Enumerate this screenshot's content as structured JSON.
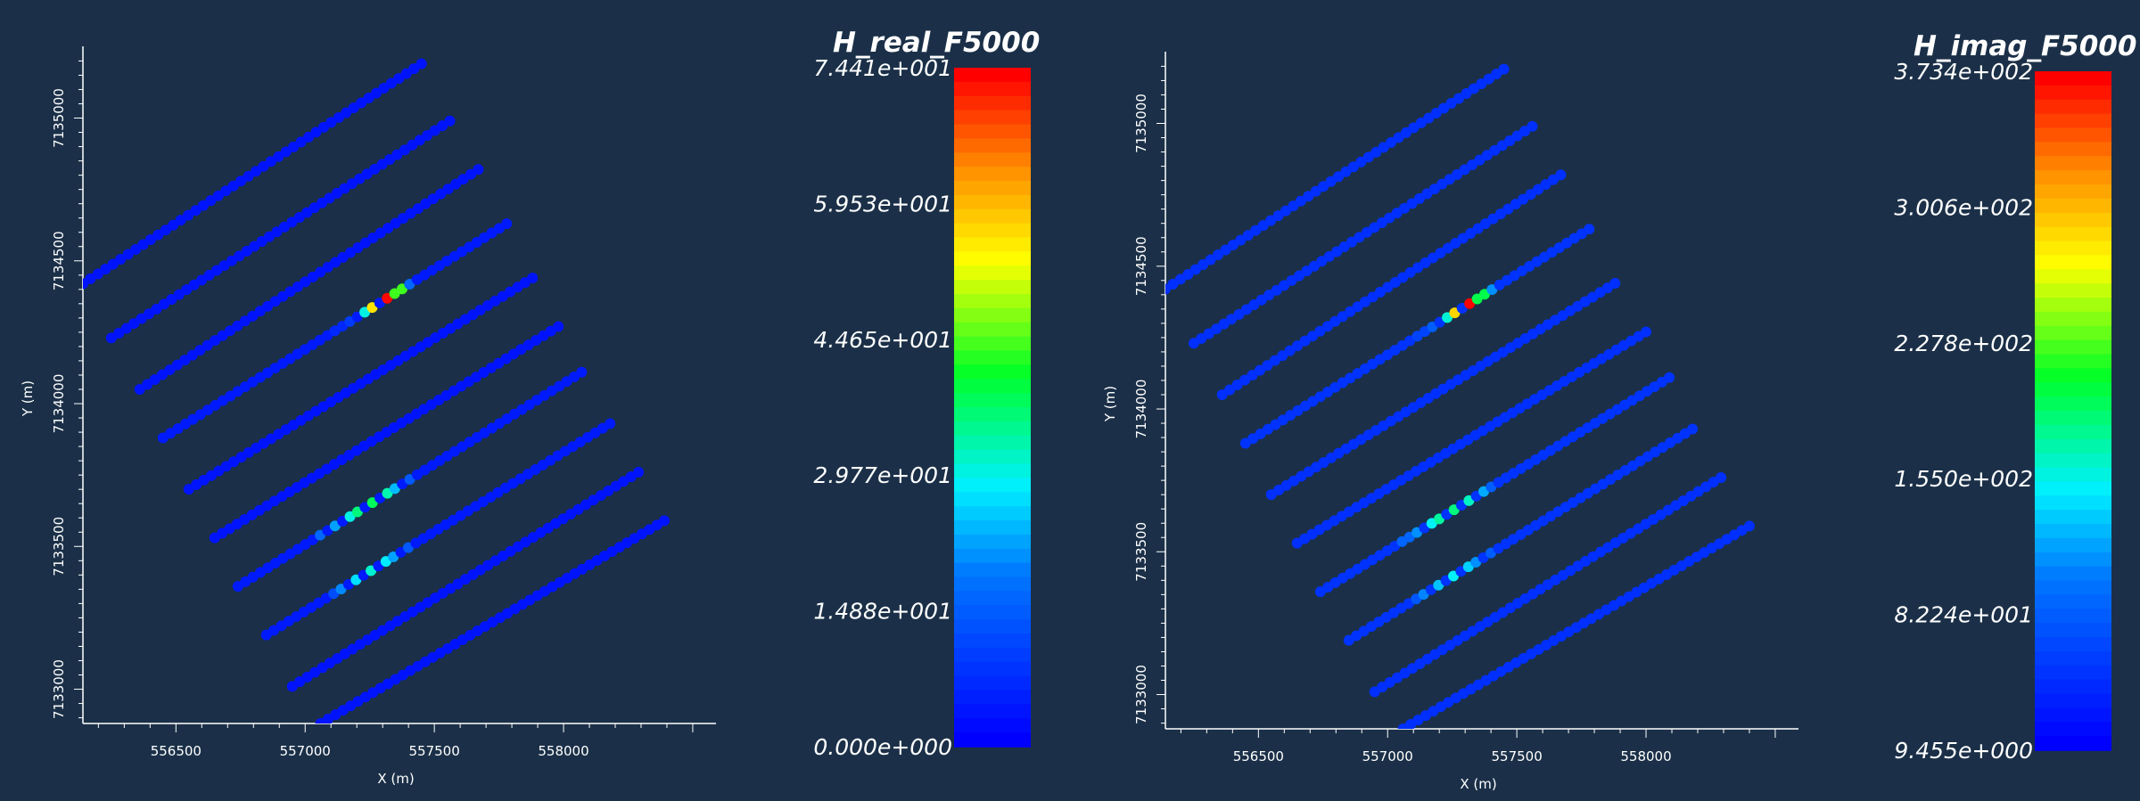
{
  "chart_data": [
    {
      "type": "scatter",
      "xlabel": "X (m)",
      "ylabel": "Y (m)",
      "xlim": [
        556140,
        558590
      ],
      "ylim": [
        7132880,
        7135220
      ],
      "xticks": [
        "556500",
        "557000",
        "557500",
        "558000"
      ],
      "yticks": [
        "7133000",
        "7133500",
        "7134000",
        "7134500",
        "7135000"
      ],
      "scalar_name": "H_real_F5000",
      "range": [
        0.0,
        74.41
      ],
      "colorbar_labels": [
        "7.441e+001",
        "5.953e+001",
        "4.465e+001",
        "2.977e+001",
        "1.488e+001",
        "0.000e+000"
      ],
      "lines": [
        {
          "x0": 556140,
          "y0": 7134420,
          "x1": 557450,
          "y1": 7135190,
          "base": 3,
          "anomalies": []
        },
        {
          "x0": 556250,
          "y0": 7134230,
          "x1": 557560,
          "y1": 7134990,
          "base": 3,
          "anomalies": []
        },
        {
          "x0": 556360,
          "y0": 7134050,
          "x1": 557670,
          "y1": 7134820,
          "base": 3,
          "anomalies": []
        },
        {
          "x0": 556450,
          "y0": 7133880,
          "x1": 557780,
          "y1": 7134630,
          "base": 4,
          "anomalies": [
            [
              557180,
              9
            ],
            [
              557230,
              30
            ],
            [
              557270,
              56
            ],
            [
              557310,
              74
            ],
            [
              557360,
              44
            ],
            [
              557410,
              16
            ],
            [
              557130,
              6
            ]
          ]
        },
        {
          "x0": 556550,
          "y0": 7133700,
          "x1": 557880,
          "y1": 7134440,
          "base": 3,
          "anomalies": []
        },
        {
          "x0": 556650,
          "y0": 7133530,
          "x1": 557980,
          "y1": 7134270,
          "base": 3,
          "anomalies": []
        },
        {
          "x0": 556740,
          "y0": 7133360,
          "x1": 558070,
          "y1": 7134110,
          "base": 4,
          "anomalies": [
            [
              557070,
              16
            ],
            [
              557120,
              22
            ],
            [
              557170,
              30
            ],
            [
              557210,
              36
            ],
            [
              557260,
              38
            ],
            [
              557310,
              33
            ],
            [
              557360,
              24
            ],
            [
              557410,
              14
            ]
          ]
        },
        {
          "x0": 556850,
          "y0": 7133190,
          "x1": 558180,
          "y1": 7133930,
          "base": 4,
          "anomalies": [
            [
              557100,
              12
            ],
            [
              557150,
              20
            ],
            [
              557200,
              27
            ],
            [
              557250,
              31
            ],
            [
              557300,
              28
            ],
            [
              557350,
              22
            ],
            [
              557400,
              14
            ]
          ]
        },
        {
          "x0": 556950,
          "y0": 7133010,
          "x1": 558290,
          "y1": 7133760,
          "base": 3,
          "anomalies": []
        },
        {
          "x0": 557060,
          "y0": 7132880,
          "x1": 558390,
          "y1": 7133590,
          "base": 3,
          "anomalies": []
        }
      ]
    },
    {
      "type": "scatter",
      "xlabel": "X (m)",
      "ylabel": "Y (m)",
      "xlim": [
        556140,
        558590
      ],
      "ylim": [
        7132880,
        7135220
      ],
      "xticks": [
        "556500",
        "557000",
        "557500",
        "558000"
      ],
      "yticks": [
        "7133000",
        "7133500",
        "7134000",
        "7134500",
        "7135000"
      ],
      "scalar_name": "H_imag_F5000",
      "range": [
        9.455,
        373.4
      ],
      "colorbar_labels": [
        "3.734e+002",
        "3.006e+002",
        "2.278e+002",
        "1.550e+002",
        "8.224e+001",
        "9.455e+000"
      ],
      "lines": [
        {
          "x0": 556140,
          "y0": 7134420,
          "x1": 557450,
          "y1": 7135190,
          "base": 45,
          "anomalies": []
        },
        {
          "x0": 556250,
          "y0": 7134230,
          "x1": 557560,
          "y1": 7134990,
          "base": 45,
          "anomalies": []
        },
        {
          "x0": 556360,
          "y0": 7134050,
          "x1": 557670,
          "y1": 7134820,
          "base": 45,
          "anomalies": []
        },
        {
          "x0": 556450,
          "y0": 7133880,
          "x1": 557780,
          "y1": 7134630,
          "base": 48,
          "anomalies": [
            [
              557180,
              80
            ],
            [
              557230,
              160
            ],
            [
              557270,
              290
            ],
            [
              557310,
              373
            ],
            [
              557360,
              200
            ],
            [
              557410,
              110
            ],
            [
              557130,
              60
            ]
          ]
        },
        {
          "x0": 556550,
          "y0": 7133700,
          "x1": 557880,
          "y1": 7134440,
          "base": 45,
          "anomalies": []
        },
        {
          "x0": 556650,
          "y0": 7133530,
          "x1": 558000,
          "y1": 7134270,
          "base": 45,
          "anomalies": []
        },
        {
          "x0": 556740,
          "y0": 7133360,
          "x1": 558090,
          "y1": 7134110,
          "base": 48,
          "anomalies": [
            [
              557070,
              85
            ],
            [
              557120,
              110
            ],
            [
              557170,
              150
            ],
            [
              557210,
              175
            ],
            [
              557260,
              185
            ],
            [
              557310,
              165
            ],
            [
              557360,
              120
            ],
            [
              557410,
              80
            ]
          ]
        },
        {
          "x0": 556850,
          "y0": 7133190,
          "x1": 558180,
          "y1": 7133930,
          "base": 48,
          "anomalies": [
            [
              557100,
              75
            ],
            [
              557150,
              105
            ],
            [
              557200,
              130
            ],
            [
              557250,
              150
            ],
            [
              557300,
              135
            ],
            [
              557350,
              110
            ],
            [
              557400,
              80
            ]
          ]
        },
        {
          "x0": 556950,
          "y0": 7133010,
          "x1": 558290,
          "y1": 7133760,
          "base": 45,
          "anomalies": []
        },
        {
          "x0": 557060,
          "y0": 7132880,
          "x1": 558400,
          "y1": 7133590,
          "base": 45,
          "anomalies": []
        }
      ]
    }
  ]
}
